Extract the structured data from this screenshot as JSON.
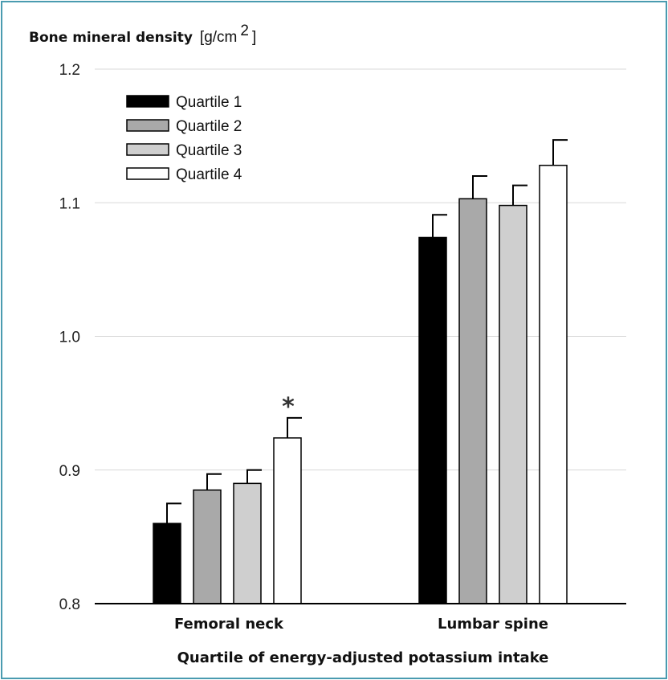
{
  "chart_data": {
    "type": "bar",
    "ylabel_bold": "Bone mineral density",
    "ylabel_unit": "[g/cm",
    "ylabel_unit_sup": "2",
    "ylabel_unit_close": "]",
    "xlabel": "Quartile of energy-adjusted potassium intake",
    "ylim": [
      0.8,
      1.2
    ],
    "yticks": [
      "0.8",
      "0.9",
      "1.0",
      "1.1",
      "1.2"
    ],
    "categories": [
      "Femoral neck",
      "Lumbar spine"
    ],
    "series": [
      {
        "name": "Quartile 1",
        "color": "#000000",
        "values": [
          0.86,
          1.074
        ],
        "errors": [
          0.015,
          0.017
        ]
      },
      {
        "name": "Quartile 2",
        "color": "#a9a9a9",
        "values": [
          0.885,
          1.103
        ],
        "errors": [
          0.012,
          0.017
        ]
      },
      {
        "name": "Quartile 3",
        "color": "#cfcfcf",
        "values": [
          0.89,
          1.098
        ],
        "errors": [
          0.01,
          0.015
        ]
      },
      {
        "name": "Quartile 4",
        "color": "#ffffff",
        "values": [
          0.924,
          1.128
        ],
        "errors": [
          0.015,
          0.019
        ]
      }
    ],
    "annotations": [
      {
        "text": "*",
        "category": 0,
        "series": 3
      }
    ],
    "legend_position": "top-left",
    "grid": true
  }
}
